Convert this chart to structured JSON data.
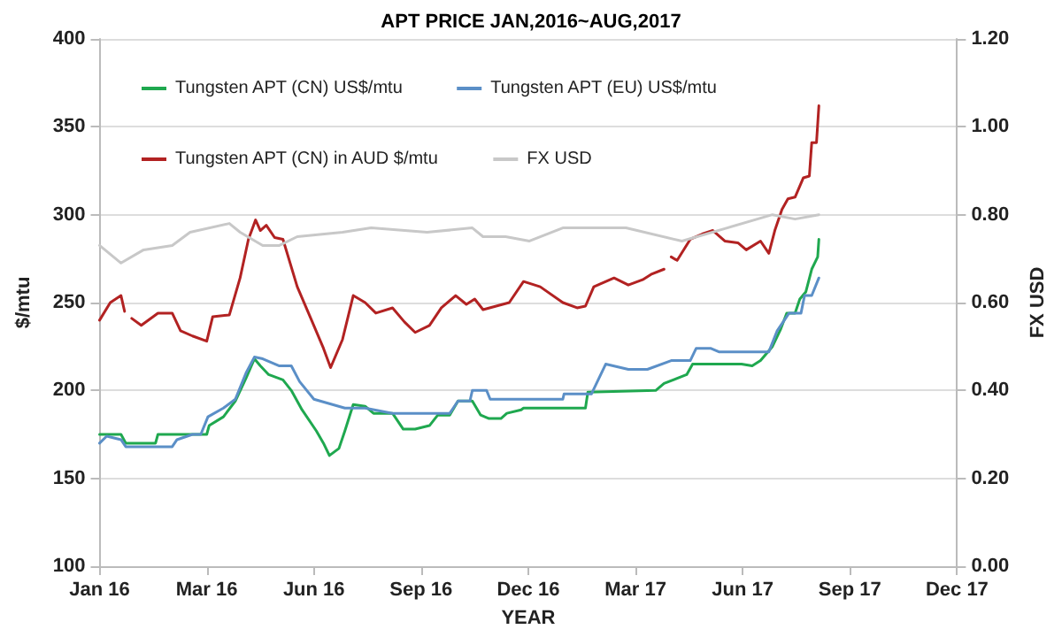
{
  "chart_data": {
    "type": "line",
    "title": "APT PRICE JAN,2016~AUG,2017",
    "xlabel": "YEAR",
    "ylabel": "$/mtu",
    "y2label": "FX USD",
    "xlim": [
      "2016-01-01",
      "2017-12-21"
    ],
    "xticks": [
      {
        "value": "2016-01-01",
        "label": "Jan 16"
      },
      {
        "value": "2016-03-31",
        "label": "Mar 16"
      },
      {
        "value": "2016-06-29",
        "label": "Jun 16"
      },
      {
        "value": "2016-09-27",
        "label": "Sep 16"
      },
      {
        "value": "2016-12-26",
        "label": "Dec 16"
      },
      {
        "value": "2017-03-26",
        "label": "Mar 17"
      },
      {
        "value": "2017-06-24",
        "label": "Jun 17"
      },
      {
        "value": "2017-09-22",
        "label": "Sep 17"
      },
      {
        "value": "2017-12-21",
        "label": "Dec 17"
      }
    ],
    "ylim": [
      100,
      400
    ],
    "yticks": [
      100,
      150,
      200,
      250,
      300,
      350,
      400
    ],
    "y2lim": [
      0,
      1.2
    ],
    "y2ticks": [
      {
        "value": 0,
        "label": "0.00"
      },
      {
        "value": 0.2,
        "label": "0.20"
      },
      {
        "value": 0.4,
        "label": "0.40"
      },
      {
        "value": 0.6,
        "label": "0.60"
      },
      {
        "value": 0.8,
        "label": "0.80"
      },
      {
        "value": 1.0,
        "label": "1.00"
      },
      {
        "value": 1.2,
        "label": "1.20"
      }
    ],
    "grid": "y",
    "legend": "top",
    "marker": "none",
    "line_style": "solid",
    "series": [
      {
        "name": "Tungsten APT (CN) US$/mtu",
        "color": "#1fa84f",
        "x": [
          "2016-01-01",
          "2016-01-19",
          "2016-01-23",
          "2016-02-17",
          "2016-02-19",
          "2016-03-31",
          "2016-04-02",
          "2016-04-14",
          "2016-04-24",
          "2016-05-03",
          "2016-05-10",
          "2016-05-15",
          "2016-05-22",
          "2016-06-03",
          "2016-06-10",
          "2016-06-19",
          "2016-07-01",
          "2016-07-07",
          "2016-07-12",
          "2016-07-20",
          "2016-07-25",
          "2016-08-01",
          "2016-08-11",
          "2016-08-18",
          "2016-09-03",
          "2016-09-12",
          "2016-09-22",
          "2016-10-04",
          "2016-10-11",
          "2016-10-21",
          "2016-10-28",
          "2016-11-09",
          "2016-11-16",
          "2016-11-23",
          "2016-12-03",
          "2016-12-08",
          "2016-12-20",
          "2016-12-22",
          "2017-02-12",
          "2017-02-14",
          "2017-04-12",
          "2017-04-19",
          "2017-05-08",
          "2017-05-13",
          "2017-06-23",
          "2017-07-02",
          "2017-07-09",
          "2017-07-19",
          "2017-07-26",
          "2017-07-31",
          "2017-08-07",
          "2017-08-11",
          "2017-08-16",
          "2017-08-21",
          "2017-08-26",
          "2017-08-27"
        ],
        "values": [
          175,
          175,
          170,
          170,
          175,
          175,
          180,
          185,
          194,
          207,
          218,
          214,
          209,
          206,
          200,
          189,
          177,
          170,
          163,
          167,
          177,
          192,
          191,
          187,
          187,
          178,
          178,
          180,
          186,
          186,
          194,
          194,
          186,
          184,
          184,
          187,
          189,
          190,
          190,
          199,
          200,
          204,
          209,
          215,
          215,
          214,
          217,
          225,
          235,
          244,
          244,
          252,
          256,
          269,
          276,
          286
        ]
      },
      {
        "name": "Tungsten APT (EU) US$/mtu",
        "color": "#5b8fc7",
        "x": [
          "2016-01-01",
          "2016-01-07",
          "2016-01-19",
          "2016-01-23",
          "2016-03-02",
          "2016-03-06",
          "2016-03-19",
          "2016-03-26",
          "2016-04-01",
          "2016-04-14",
          "2016-04-24",
          "2016-05-03",
          "2016-05-10",
          "2016-05-17",
          "2016-05-31",
          "2016-06-10",
          "2016-06-17",
          "2016-06-29",
          "2016-07-25",
          "2016-08-11",
          "2016-09-03",
          "2016-10-21",
          "2016-10-28",
          "2016-11-07",
          "2016-11-09",
          "2016-11-21",
          "2016-11-24",
          "2017-01-24",
          "2017-01-25",
          "2017-02-17",
          "2017-03-01",
          "2017-03-20",
          "2017-04-05",
          "2017-04-25",
          "2017-05-11",
          "2017-05-16",
          "2017-05-28",
          "2017-06-04",
          "2017-07-16",
          "2017-07-23",
          "2017-08-02",
          "2017-08-12",
          "2017-08-15",
          "2017-08-21",
          "2017-08-27"
        ],
        "values": [
          170,
          174,
          172,
          168,
          168,
          172,
          175,
          175,
          185,
          190,
          195,
          210,
          219,
          218,
          214,
          214,
          205,
          195,
          190,
          190,
          187,
          187,
          194,
          194,
          200,
          200,
          195,
          195,
          198,
          198,
          215,
          212,
          212,
          217,
          217,
          224,
          224,
          222,
          222,
          234,
          244,
          244,
          254,
          254,
          264
        ]
      },
      {
        "name": "Tungsten APT (CN) in AUD $/mtu",
        "color": "#b22222",
        "x": [
          "2016-01-01",
          "2016-01-10",
          "2016-01-19",
          "2016-01-22",
          "2016-01-25",
          "2016-01-28",
          "2016-02-05",
          "2016-02-19",
          "2016-03-02",
          "2016-03-09",
          "2016-03-19",
          "2016-03-31",
          "2016-04-05",
          "2016-04-19",
          "2016-04-28",
          "2016-05-05",
          "2016-05-11",
          "2016-05-15",
          "2016-05-20",
          "2016-05-27",
          "2016-06-03",
          "2016-06-15",
          "2016-06-27",
          "2016-07-07",
          "2016-07-13",
          "2016-07-23",
          "2016-08-01",
          "2016-08-11",
          "2016-08-20",
          "2016-09-03",
          "2016-09-13",
          "2016-09-22",
          "2016-10-04",
          "2016-10-14",
          "2016-10-26",
          "2016-11-04",
          "2016-11-11",
          "2016-11-18",
          "2016-12-10",
          "2016-12-22",
          "2017-01-05",
          "2017-01-24",
          "2017-02-05",
          "2017-02-12",
          "2017-02-19",
          "2017-03-08",
          "2017-03-20",
          "2017-04-01",
          "2017-04-08",
          "2017-04-19",
          "2017-04-22",
          "2017-04-25",
          "2017-04-30",
          "2017-05-11",
          "2017-05-21",
          "2017-05-30",
          "2017-06-09",
          "2017-06-20",
          "2017-06-27",
          "2017-07-09",
          "2017-07-16",
          "2017-07-21",
          "2017-07-27",
          "2017-08-01",
          "2017-08-07",
          "2017-08-14",
          "2017-08-19",
          "2017-08-21",
          "2017-08-25",
          "2017-08-27"
        ],
        "values": [
          240,
          250,
          254,
          245,
          null,
          241,
          237,
          244,
          244,
          234,
          231,
          228,
          242,
          243,
          264,
          286,
          297,
          291,
          294,
          287,
          286,
          259,
          240,
          224,
          213,
          229,
          254,
          250,
          244,
          247,
          239,
          233,
          237,
          247,
          254,
          249,
          252,
          246,
          250,
          262,
          259,
          250,
          247,
          248,
          259,
          264,
          260,
          263,
          266,
          269,
          null,
          276,
          274,
          286,
          289,
          291,
          285,
          284,
          280,
          285,
          278,
          291,
          303,
          309,
          310,
          321,
          322,
          341,
          341,
          362
        ]
      },
      {
        "name": "FX USD",
        "color": "#c8c8c8",
        "axis": "y2",
        "x": [
          "2016-01-01",
          "2016-01-19",
          "2016-02-07",
          "2016-03-02",
          "2016-03-17",
          "2016-04-19",
          "2016-04-28",
          "2016-05-17",
          "2016-05-31",
          "2016-06-15",
          "2016-07-23",
          "2016-08-16",
          "2016-10-02",
          "2016-11-09",
          "2016-11-18",
          "2016-12-07",
          "2016-12-27",
          "2017-01-24",
          "2017-03-18",
          "2017-05-04",
          "2017-06-11",
          "2017-07-19",
          "2017-08-07",
          "2017-08-27"
        ],
        "values": [
          0.73,
          0.69,
          0.72,
          0.73,
          0.76,
          0.78,
          0.76,
          0.73,
          0.73,
          0.75,
          0.76,
          0.77,
          0.76,
          0.77,
          0.75,
          0.75,
          0.74,
          0.77,
          0.77,
          0.74,
          0.77,
          0.8,
          0.79,
          0.8
        ]
      }
    ]
  }
}
